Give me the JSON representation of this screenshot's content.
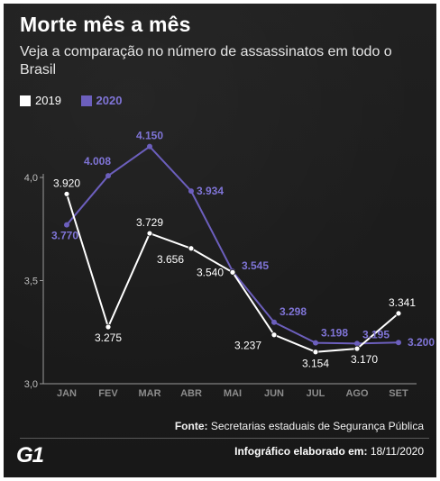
{
  "header": {
    "title": "Morte mês a mês",
    "subtitle": "Veja a comparação no número de assassinatos em todo o Brasil"
  },
  "legend": {
    "label_2019": "2019",
    "label_2020": "2020"
  },
  "footer": {
    "source_label": "Fonte:",
    "source_text": "Secretarias estaduais de Segurança Pública",
    "logo": "G1",
    "credit_label": "Infográfico elaborado em:",
    "credit_date": "18/11/2020"
  },
  "colors": {
    "background": "#1c1c1c",
    "series_2019": "#ffffff",
    "series_2020": "#6c5fbd",
    "label_2020": "#7f74d6",
    "axis": "#9a9a9a",
    "grid": "#3a3a3a"
  },
  "chart_data": {
    "type": "line",
    "title": "Morte mês a mês",
    "categories": [
      "JAN",
      "FEV",
      "MAR",
      "ABR",
      "MAI",
      "JUN",
      "JUL",
      "AGO",
      "SET"
    ],
    "ylim": [
      3.0,
      4.0
    ],
    "yticks": [
      3.0,
      3.5,
      4.0
    ],
    "ytick_labels": [
      "3,0",
      "3,5",
      "4,0"
    ],
    "xlabel": "",
    "ylabel": "",
    "grid": false,
    "legend_position": "top-left",
    "series": [
      {
        "name": "2019",
        "values": [
          3.92,
          3.275,
          3.729,
          3.656,
          3.54,
          3.237,
          3.154,
          3.17,
          3.341
        ],
        "labels": [
          "3.920",
          "3.275",
          "3.729",
          "3.656",
          "3.540",
          "3.237",
          "3.154",
          "3.170",
          "3.341"
        ]
      },
      {
        "name": "2020",
        "values": [
          3.77,
          4.008,
          4.15,
          3.934,
          3.545,
          3.298,
          3.198,
          3.195,
          3.2
        ],
        "labels": [
          "3.770",
          "4.008",
          "4.150",
          "3.934",
          "3.545",
          "3.298",
          "3.198",
          "3.195",
          "3.200"
        ]
      }
    ]
  }
}
